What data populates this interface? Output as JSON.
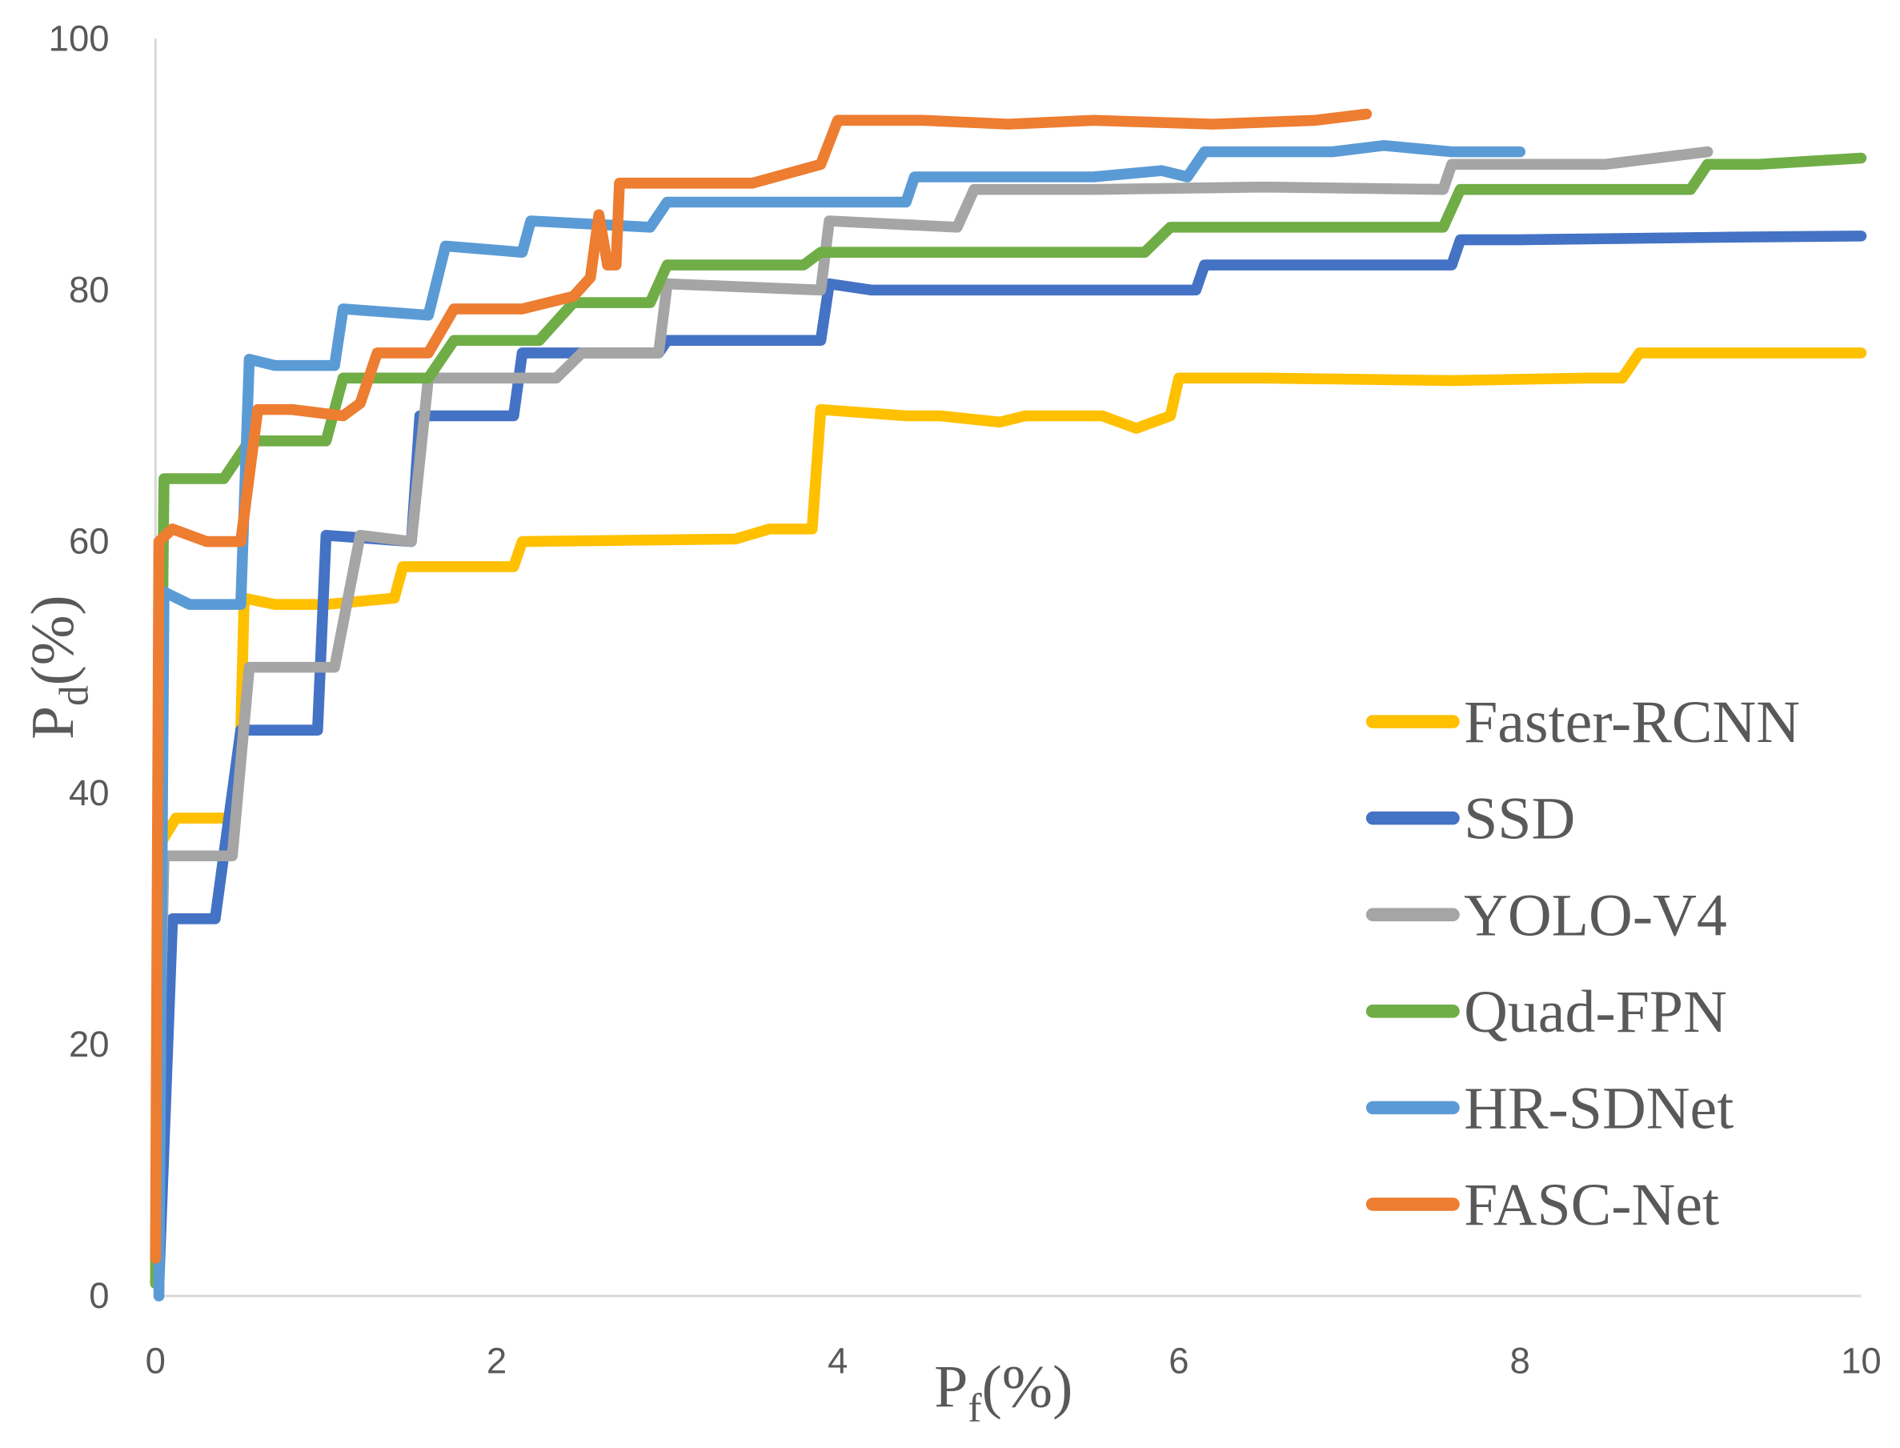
{
  "chart_data": {
    "type": "line",
    "title": "",
    "xlabel": {
      "main": "P",
      "sub": "f",
      "unit": "(%)"
    },
    "ylabel": {
      "main": "P",
      "sub": "d",
      "unit": "(%)"
    },
    "xlim": [
      0,
      10
    ],
    "ylim": [
      0,
      100
    ],
    "xticks": [
      "0",
      "2",
      "4",
      "6",
      "8",
      "10"
    ],
    "yticks": [
      "0",
      "20",
      "40",
      "60",
      "80",
      "100"
    ],
    "grid": false,
    "legend": "right",
    "series": [
      {
        "name": "Faster-RCNN",
        "color": "#FFC000",
        "points": [
          [
            0,
            2
          ],
          [
            0.03,
            36
          ],
          [
            0.12,
            38
          ],
          [
            0.45,
            38
          ],
          [
            0.5,
            45
          ],
          [
            0.52,
            55.5
          ],
          [
            0.7,
            55
          ],
          [
            1,
            55
          ],
          [
            1.4,
            55.5
          ],
          [
            1.45,
            58
          ],
          [
            2.1,
            58
          ],
          [
            2.15,
            60
          ],
          [
            3.4,
            60.2
          ],
          [
            3.6,
            61
          ],
          [
            3.85,
            61
          ],
          [
            3.9,
            70.5
          ],
          [
            4.4,
            70
          ],
          [
            4.6,
            70
          ],
          [
            4.95,
            69.5
          ],
          [
            5.1,
            70
          ],
          [
            5.55,
            70
          ],
          [
            5.75,
            69
          ],
          [
            5.95,
            70
          ],
          [
            6,
            73
          ],
          [
            6.5,
            73
          ],
          [
            7.6,
            72.8
          ],
          [
            8.4,
            73
          ],
          [
            8.6,
            73
          ],
          [
            8.7,
            75
          ],
          [
            9.1,
            75
          ],
          [
            10,
            75
          ]
        ]
      },
      {
        "name": "SSD",
        "color": "#4472C4",
        "points": [
          [
            0.02,
            1
          ],
          [
            0.1,
            30
          ],
          [
            0.35,
            30
          ],
          [
            0.5,
            45
          ],
          [
            0.95,
            45
          ],
          [
            1,
            60.5
          ],
          [
            1.5,
            60
          ],
          [
            1.55,
            70
          ],
          [
            2.1,
            70
          ],
          [
            2.15,
            75
          ],
          [
            2.95,
            75
          ],
          [
            3,
            76
          ],
          [
            3.9,
            76
          ],
          [
            3.95,
            80.5
          ],
          [
            4.2,
            80
          ],
          [
            6.1,
            80
          ],
          [
            6.15,
            82
          ],
          [
            7.6,
            82
          ],
          [
            7.65,
            84
          ],
          [
            8,
            84
          ],
          [
            9.2,
            84.2
          ],
          [
            10,
            84.3
          ]
        ]
      },
      {
        "name": "YOLO-V4",
        "color": "#A5A5A5",
        "points": [
          [
            0,
            3
          ],
          [
            0.05,
            35
          ],
          [
            0.2,
            35
          ],
          [
            0.45,
            35
          ],
          [
            0.55,
            50
          ],
          [
            1,
            50
          ],
          [
            1.05,
            50
          ],
          [
            1.2,
            60.5
          ],
          [
            1.5,
            60
          ],
          [
            1.6,
            73
          ],
          [
            2.35,
            73
          ],
          [
            2.5,
            75
          ],
          [
            2.95,
            75
          ],
          [
            3,
            80.5
          ],
          [
            3.9,
            80
          ],
          [
            3.95,
            85.5
          ],
          [
            4.7,
            85
          ],
          [
            4.8,
            88
          ],
          [
            5.5,
            88
          ],
          [
            6.5,
            88.2
          ],
          [
            7.55,
            88
          ],
          [
            7.6,
            90
          ],
          [
            8.5,
            90
          ],
          [
            9.1,
            91
          ]
        ]
      },
      {
        "name": "Quad-FPN",
        "color": "#70AD47",
        "points": [
          [
            0,
            1
          ],
          [
            0.05,
            65
          ],
          [
            0.15,
            65
          ],
          [
            0.4,
            65
          ],
          [
            0.55,
            68
          ],
          [
            1,
            68
          ],
          [
            1.1,
            73
          ],
          [
            1.6,
            73
          ],
          [
            1.75,
            76
          ],
          [
            2.25,
            76
          ],
          [
            2.45,
            79
          ],
          [
            2.9,
            79
          ],
          [
            3,
            82
          ],
          [
            3.8,
            82
          ],
          [
            3.9,
            83
          ],
          [
            5.6,
            83
          ],
          [
            5.8,
            83
          ],
          [
            5.95,
            85
          ],
          [
            7.55,
            85
          ],
          [
            7.65,
            88
          ],
          [
            9,
            88
          ],
          [
            9.1,
            90
          ],
          [
            9.4,
            90
          ],
          [
            10,
            90.5
          ]
        ]
      },
      {
        "name": "HR-SDNet",
        "color": "#5B9BD5",
        "points": [
          [
            0.02,
            0
          ],
          [
            0.05,
            56
          ],
          [
            0.2,
            55
          ],
          [
            0.5,
            55
          ],
          [
            0.55,
            74.5
          ],
          [
            0.7,
            74
          ],
          [
            1.05,
            74
          ],
          [
            1.1,
            78.5
          ],
          [
            1.6,
            78
          ],
          [
            1.7,
            83.5
          ],
          [
            2.15,
            83
          ],
          [
            2.2,
            85.5
          ],
          [
            2.9,
            85
          ],
          [
            3,
            87
          ],
          [
            4.4,
            87
          ],
          [
            4.45,
            89
          ],
          [
            5.5,
            89
          ],
          [
            5.9,
            89.5
          ],
          [
            6.05,
            89
          ],
          [
            6.15,
            91
          ],
          [
            6.9,
            91
          ],
          [
            7.2,
            91.5
          ],
          [
            7.6,
            91
          ],
          [
            8,
            91
          ]
        ]
      },
      {
        "name": "FASC-Net",
        "color": "#ED7D31",
        "points": [
          [
            0,
            3
          ],
          [
            0.02,
            60
          ],
          [
            0.1,
            61
          ],
          [
            0.3,
            60
          ],
          [
            0.5,
            60
          ],
          [
            0.6,
            70.5
          ],
          [
            0.8,
            70.5
          ],
          [
            1.1,
            70
          ],
          [
            1.2,
            71
          ],
          [
            1.3,
            75
          ],
          [
            1.6,
            75
          ],
          [
            1.75,
            78.5
          ],
          [
            2.15,
            78.5
          ],
          [
            2.45,
            79.5
          ],
          [
            2.55,
            81
          ],
          [
            2.6,
            86
          ],
          [
            2.65,
            82
          ],
          [
            2.7,
            82
          ],
          [
            2.72,
            88.5
          ],
          [
            3.5,
            88.5
          ],
          [
            3.9,
            90
          ],
          [
            4,
            93.5
          ],
          [
            4.5,
            93.5
          ],
          [
            5,
            93.2
          ],
          [
            5.5,
            93.5
          ],
          [
            6.2,
            93.2
          ],
          [
            6.8,
            93.5
          ],
          [
            7.1,
            94
          ]
        ]
      }
    ]
  }
}
